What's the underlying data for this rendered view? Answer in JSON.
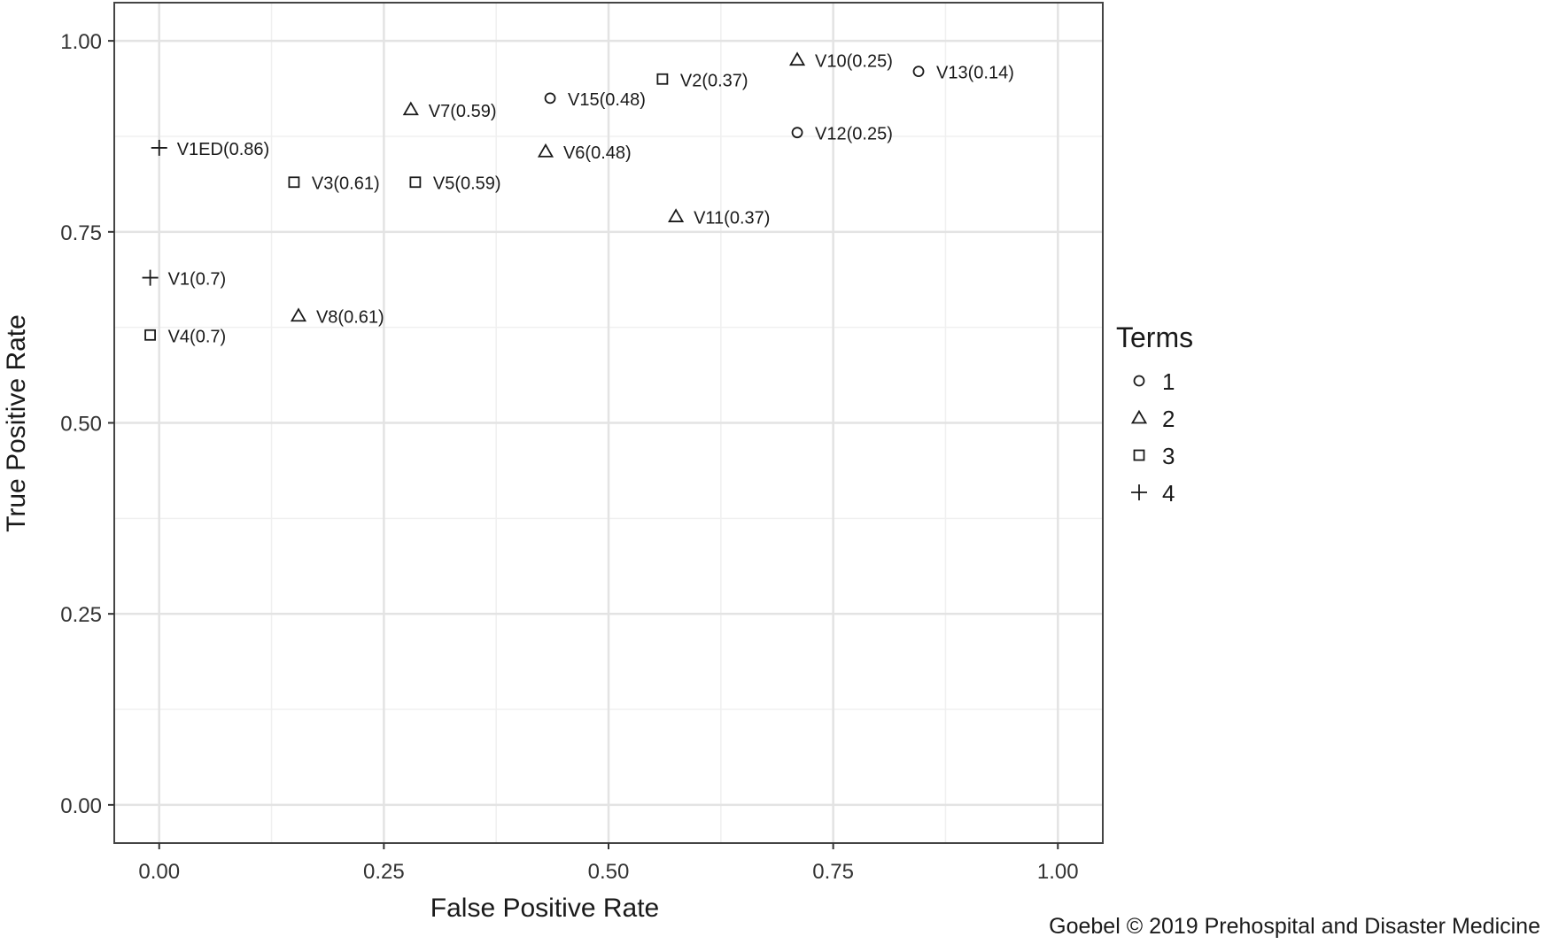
{
  "chart_data": {
    "type": "scatter",
    "title": "",
    "xlabel": "False Positive Rate",
    "ylabel": "True Positive Rate",
    "xlim": [
      -0.05,
      1.05
    ],
    "ylim": [
      -0.05,
      1.05
    ],
    "x_ticks": [
      "0.00",
      "0.25",
      "0.50",
      "0.75",
      "1.00"
    ],
    "y_ticks": [
      "0.00",
      "0.25",
      "0.50",
      "0.75",
      "1.00"
    ],
    "grid": true,
    "legend": {
      "title": "Terms",
      "placement": "right",
      "entries": [
        {
          "label": "1",
          "shape": "circle"
        },
        {
          "label": "2",
          "shape": "triangle"
        },
        {
          "label": "3",
          "shape": "square"
        },
        {
          "label": "4",
          "shape": "plus"
        }
      ]
    },
    "points": [
      {
        "label": "V1ED(0.86)",
        "x": 0.0,
        "y": 0.86,
        "terms": "4"
      },
      {
        "label": "V1(0.7)",
        "x": -0.01,
        "y": 0.69,
        "terms": "4"
      },
      {
        "label": "V4(0.7)",
        "x": -0.01,
        "y": 0.615,
        "terms": "3"
      },
      {
        "label": "V3(0.61)",
        "x": 0.15,
        "y": 0.815,
        "terms": "3"
      },
      {
        "label": "V5(0.59)",
        "x": 0.285,
        "y": 0.815,
        "terms": "3"
      },
      {
        "label": "V2(0.37)",
        "x": 0.56,
        "y": 0.95,
        "terms": "3"
      },
      {
        "label": "V7(0.59)",
        "x": 0.28,
        "y": 0.91,
        "terms": "2"
      },
      {
        "label": "V8(0.61)",
        "x": 0.155,
        "y": 0.64,
        "terms": "2"
      },
      {
        "label": "V6(0.48)",
        "x": 0.43,
        "y": 0.855,
        "terms": "2"
      },
      {
        "label": "V11(0.37)",
        "x": 0.575,
        "y": 0.77,
        "terms": "2"
      },
      {
        "label": "V10(0.25)",
        "x": 0.71,
        "y": 0.975,
        "terms": "2"
      },
      {
        "label": "V15(0.48)",
        "x": 0.435,
        "y": 0.925,
        "terms": "1"
      },
      {
        "label": "V12(0.25)",
        "x": 0.71,
        "y": 0.88,
        "terms": "1"
      },
      {
        "label": "V13(0.14)",
        "x": 0.845,
        "y": 0.96,
        "terms": "1"
      }
    ]
  },
  "credit": "Goebel © 2019 Prehospital and Disaster Medicine"
}
